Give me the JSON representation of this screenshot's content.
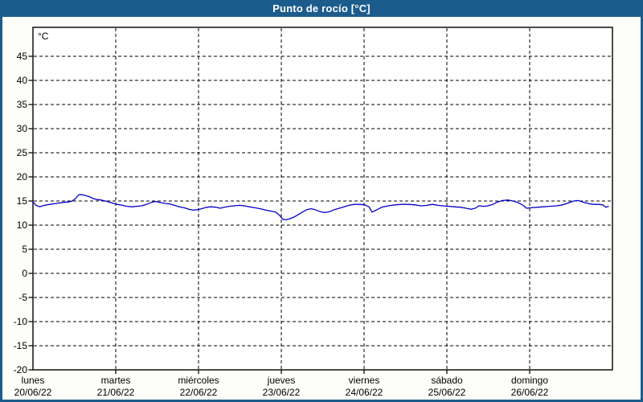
{
  "chart_data": {
    "type": "line",
    "title": "Punto de rocío [°C]",
    "unit_label": "°C",
    "legend": "none",
    "grid": "dashed",
    "colors": {
      "frame": "#1c5c8c",
      "title_text": "#ffffff",
      "figure_bg": "#fdfdfa",
      "plot_bg": "#ffffff",
      "grid": "#000000",
      "axis": "#000000",
      "text": "#000000",
      "line": "#0000c8"
    },
    "y_axis": {
      "tick_values": [
        45,
        40,
        35,
        30,
        25,
        20,
        15,
        10,
        5,
        0,
        -5,
        -10,
        -15,
        -20
      ],
      "min": -20,
      "max": 51
    },
    "x_axis": {
      "span_hours": 168,
      "days": [
        {
          "label": "lunes",
          "date": "20/06/22"
        },
        {
          "label": "martes",
          "date": "21/06/22"
        },
        {
          "label": "miércoles",
          "date": "22/06/22"
        },
        {
          "label": "jueves",
          "date": "23/06/22"
        },
        {
          "label": "viernes",
          "date": "24/06/22"
        },
        {
          "label": "sábado",
          "date": "25/06/22"
        },
        {
          "label": "domingo",
          "date": "26/06/22"
        }
      ]
    },
    "series": [
      {
        "name": "Punto de rocío",
        "color": "#0000c8",
        "points_hours_value": [
          [
            0.0,
            14.8
          ],
          [
            0.9,
            14.1
          ],
          [
            1.9,
            13.8
          ],
          [
            3.3,
            14.1
          ],
          [
            4.9,
            14.3
          ],
          [
            6.8,
            14.5
          ],
          [
            8.6,
            14.7
          ],
          [
            10.3,
            14.8
          ],
          [
            11.4,
            15.0
          ],
          [
            12.3,
            15.5
          ],
          [
            13.3,
            16.3
          ],
          [
            14.4,
            16.3
          ],
          [
            15.4,
            16.1
          ],
          [
            16.3,
            15.9
          ],
          [
            17.5,
            15.5
          ],
          [
            18.6,
            15.3
          ],
          [
            19.8,
            15.2
          ],
          [
            21.0,
            15.0
          ],
          [
            22.1,
            14.8
          ],
          [
            23.3,
            14.5
          ],
          [
            24.5,
            14.3
          ],
          [
            25.9,
            14.1
          ],
          [
            27.3,
            13.9
          ],
          [
            28.7,
            13.8
          ],
          [
            30.1,
            13.9
          ],
          [
            31.5,
            14.0
          ],
          [
            32.9,
            14.3
          ],
          [
            34.3,
            14.7
          ],
          [
            35.4,
            14.9
          ],
          [
            36.8,
            14.7
          ],
          [
            38.2,
            14.5
          ],
          [
            39.6,
            14.4
          ],
          [
            41.0,
            14.1
          ],
          [
            42.4,
            13.8
          ],
          [
            43.8,
            13.6
          ],
          [
            45.2,
            13.3
          ],
          [
            46.4,
            13.1
          ],
          [
            47.5,
            13.2
          ],
          [
            48.9,
            13.4
          ],
          [
            50.3,
            13.7
          ],
          [
            51.7,
            13.8
          ],
          [
            53.1,
            13.7
          ],
          [
            54.3,
            13.5
          ],
          [
            55.5,
            13.7
          ],
          [
            56.9,
            13.9
          ],
          [
            58.3,
            14.0
          ],
          [
            59.9,
            14.1
          ],
          [
            61.3,
            14.0
          ],
          [
            62.7,
            13.8
          ],
          [
            64.3,
            13.6
          ],
          [
            65.9,
            13.4
          ],
          [
            67.6,
            13.1
          ],
          [
            69.0,
            12.9
          ],
          [
            70.4,
            12.7
          ],
          [
            71.5,
            12.0
          ],
          [
            72.5,
            11.2
          ],
          [
            73.4,
            11.1
          ],
          [
            74.3,
            11.3
          ],
          [
            75.5,
            11.6
          ],
          [
            76.7,
            12.1
          ],
          [
            78.1,
            12.7
          ],
          [
            79.4,
            13.2
          ],
          [
            80.6,
            13.4
          ],
          [
            81.8,
            13.2
          ],
          [
            83.2,
            12.8
          ],
          [
            84.6,
            12.6
          ],
          [
            86.0,
            12.8
          ],
          [
            87.4,
            13.2
          ],
          [
            88.8,
            13.5
          ],
          [
            90.2,
            13.8
          ],
          [
            91.6,
            14.1
          ],
          [
            93.2,
            14.3
          ],
          [
            94.8,
            14.3
          ],
          [
            96.2,
            14.2
          ],
          [
            97.4,
            13.8
          ],
          [
            98.3,
            12.7
          ],
          [
            99.5,
            13.1
          ],
          [
            101.1,
            13.7
          ],
          [
            103.0,
            14.0
          ],
          [
            104.9,
            14.2
          ],
          [
            107.0,
            14.3
          ],
          [
            108.8,
            14.3
          ],
          [
            110.7,
            14.2
          ],
          [
            112.5,
            14.0
          ],
          [
            114.2,
            14.1
          ],
          [
            115.8,
            14.3
          ],
          [
            117.4,
            14.1
          ],
          [
            118.8,
            14.0
          ],
          [
            120.5,
            13.9
          ],
          [
            122.1,
            13.8
          ],
          [
            124.0,
            13.7
          ],
          [
            125.6,
            13.5
          ],
          [
            127.0,
            13.3
          ],
          [
            128.2,
            13.5
          ],
          [
            129.3,
            14.0
          ],
          [
            130.7,
            13.9
          ],
          [
            131.9,
            14.0
          ],
          [
            133.3,
            14.3
          ],
          [
            134.7,
            14.8
          ],
          [
            136.1,
            15.1
          ],
          [
            137.7,
            15.2
          ],
          [
            139.1,
            15.0
          ],
          [
            140.5,
            14.7
          ],
          [
            141.9,
            14.2
          ],
          [
            143.1,
            13.5
          ],
          [
            144.5,
            13.6
          ],
          [
            146.1,
            13.7
          ],
          [
            148.0,
            13.8
          ],
          [
            149.8,
            13.9
          ],
          [
            151.7,
            14.0
          ],
          [
            153.6,
            14.2
          ],
          [
            155.2,
            14.6
          ],
          [
            156.8,
            15.0
          ],
          [
            158.0,
            15.1
          ],
          [
            159.4,
            14.8
          ],
          [
            160.8,
            14.5
          ],
          [
            162.4,
            14.3
          ],
          [
            164.0,
            14.3
          ],
          [
            165.2,
            14.2
          ],
          [
            166.1,
            13.7
          ],
          [
            166.8,
            13.9
          ]
        ]
      }
    ]
  }
}
